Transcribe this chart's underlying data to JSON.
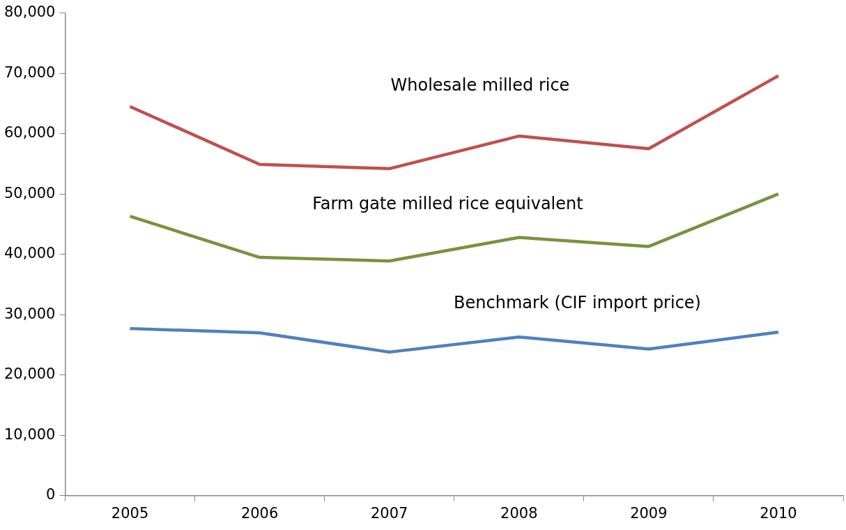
{
  "chart_data": {
    "type": "line",
    "categories": [
      "2005",
      "2006",
      "2007",
      "2008",
      "2009",
      "2010"
    ],
    "series": [
      {
        "name": "Wholesale milled rice",
        "color": "#c0504d",
        "values": [
          64500,
          54900,
          54200,
          59600,
          57500,
          69600
        ]
      },
      {
        "name": "Farm gate milled rice equivalent",
        "color": "#77933c",
        "values": [
          46300,
          39500,
          38900,
          42800,
          41300,
          50000
        ]
      },
      {
        "name": "Benchmark (CIF import price)",
        "color": "#4f81bd",
        "values": [
          27700,
          27000,
          23800,
          26300,
          24300,
          27100
        ]
      }
    ],
    "ylim": [
      0,
      80000
    ],
    "yticks": [
      0,
      {
        "value": 10000,
        "label": "10,000"
      },
      {
        "value": 20000,
        "label": "20,000"
      },
      {
        "value": 30000,
        "label": "30,000"
      },
      {
        "value": 40000,
        "label": "40,000"
      },
      {
        "value": 50000,
        "label": "50,000"
      },
      {
        "value": 60000,
        "label": "60,000"
      },
      {
        "value": 70000,
        "label": "70,000"
      },
      {
        "value": 80000,
        "label": "80,000"
      }
    ],
    "grid": false,
    "legend": false,
    "marker": "none",
    "line_style": "solid"
  }
}
